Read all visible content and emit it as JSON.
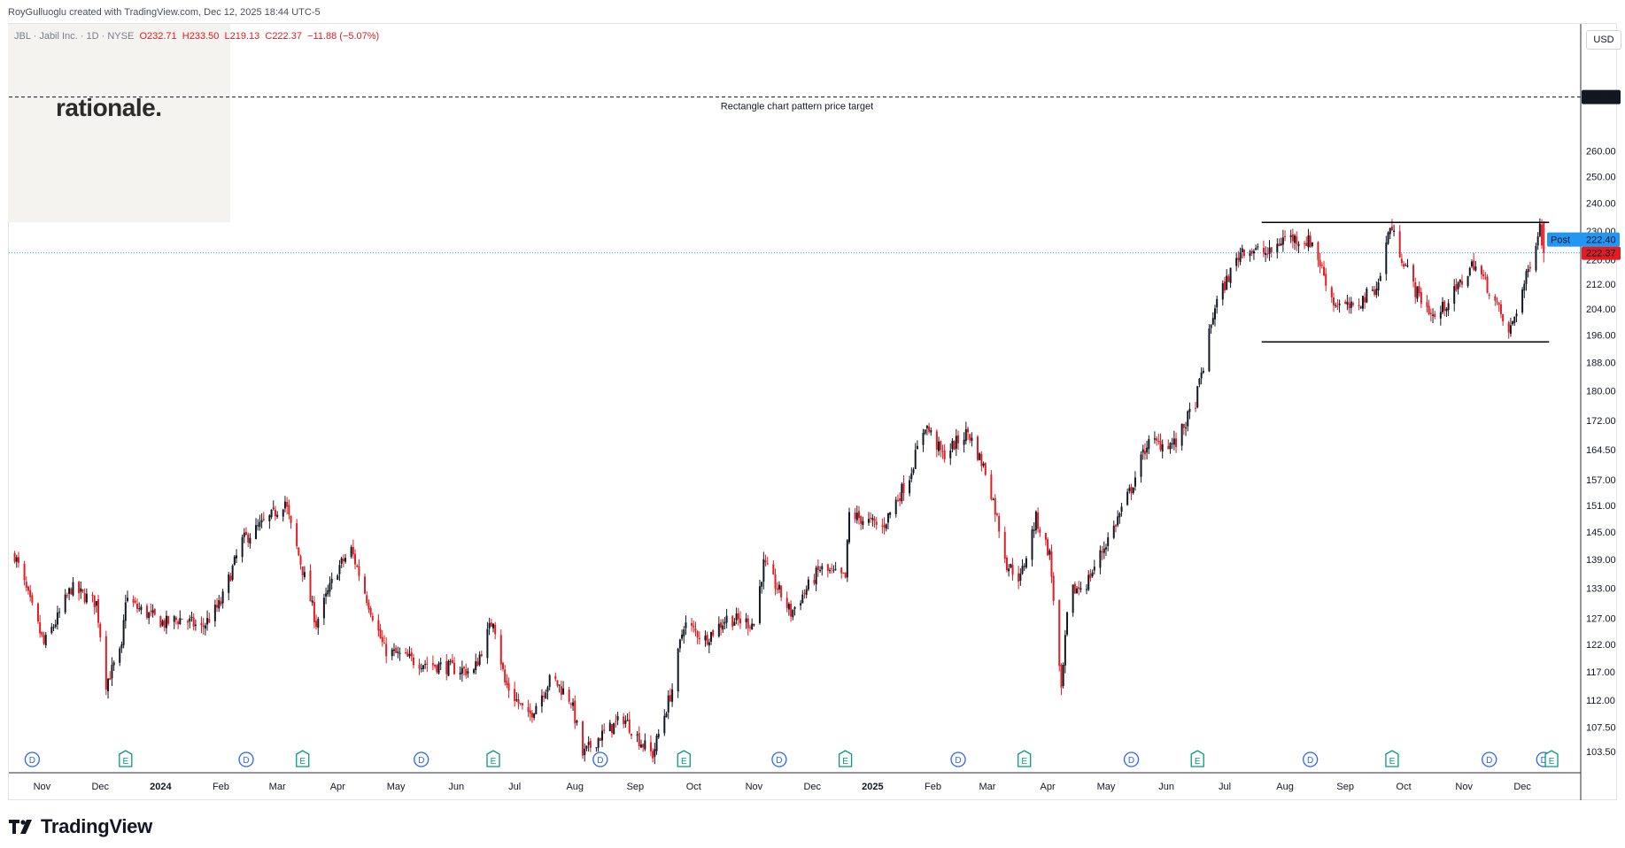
{
  "header": {
    "credit": "RoyGulluoglu created with TradingView.com, Dec 12, 2025 18:44 UTC-5"
  },
  "legend": {
    "symbol": "JBL · Jabil Inc. · 1D · NYSE",
    "open": "O232.71",
    "high": "H233.50",
    "low": "L219.13",
    "close": "C222.37",
    "change": "−11.88 (−5.07%)"
  },
  "logo": {
    "text": "rationale."
  },
  "currency_button": "USD",
  "footer": {
    "brand": "TradingView"
  },
  "colors": {
    "up": "#131722",
    "down": "#e01c24",
    "grid_line": "#000000",
    "post_badge": "#2196f3",
    "price_badge": "#e01c24",
    "dividend": "#2962ff",
    "earnings": "#089981"
  },
  "chart_data": {
    "type": "candlestick",
    "symbol": "JBL",
    "y_axis": {
      "ticks": [
        "282.40",
        "260.00",
        "250.00",
        "240.00",
        "230.00",
        "220.00",
        "212.00",
        "204.00",
        "196.00",
        "188.00",
        "180.00",
        "172.00",
        "164.50",
        "157.00",
        "151.00",
        "145.00",
        "139.00",
        "133.00",
        "127.00",
        "122.00",
        "117.00",
        "112.00",
        "107.50",
        "103.50"
      ],
      "scale": "log",
      "range": [
        102,
        290
      ]
    },
    "x_axis": {
      "ticks": [
        "Nov",
        "Dec",
        "2024",
        "Feb",
        "Mar",
        "Apr",
        "May",
        "Jun",
        "Jul",
        "Aug",
        "Sep",
        "Oct",
        "Nov",
        "Dec",
        "2025",
        "Feb",
        "Mar",
        "Apr",
        "May",
        "Jun",
        "Jul",
        "Aug",
        "Sep",
        "Oct",
        "Nov",
        "Dec"
      ],
      "bold_ticks": [
        "2024",
        "2025"
      ],
      "range": [
        "2023-10-15",
        "2025-12-31"
      ]
    },
    "price_path": [
      [
        "2023-10-18",
        140
      ],
      [
        "2023-10-26",
        130
      ],
      [
        "2023-11-02",
        122
      ],
      [
        "2023-11-09",
        127
      ],
      [
        "2023-11-16",
        133
      ],
      [
        "2023-11-29",
        130
      ],
      [
        "2023-12-04",
        115
      ],
      [
        "2023-12-12",
        121
      ],
      [
        "2023-12-14",
        131
      ],
      [
        "2023-12-20",
        129
      ],
      [
        "2024-01-03",
        126
      ],
      [
        "2024-01-12",
        127
      ],
      [
        "2024-01-22",
        125
      ],
      [
        "2024-02-01",
        130
      ],
      [
        "2024-02-12",
        143
      ],
      [
        "2024-02-26",
        148
      ],
      [
        "2024-03-05",
        152
      ],
      [
        "2024-03-08",
        146
      ],
      [
        "2024-03-21",
        126
      ],
      [
        "2024-04-01",
        137
      ],
      [
        "2024-04-08",
        141
      ],
      [
        "2024-04-16",
        131
      ],
      [
        "2024-04-25",
        121
      ],
      [
        "2024-05-10",
        119
      ],
      [
        "2024-05-24",
        118
      ],
      [
        "2024-06-10",
        117
      ],
      [
        "2024-06-20",
        127
      ],
      [
        "2024-06-26",
        115
      ],
      [
        "2024-07-08",
        109
      ],
      [
        "2024-07-20",
        116
      ],
      [
        "2024-07-30",
        112
      ],
      [
        "2024-08-05",
        103
      ],
      [
        "2024-08-14",
        106
      ],
      [
        "2024-08-26",
        109
      ],
      [
        "2024-09-04",
        105
      ],
      [
        "2024-09-10",
        103
      ],
      [
        "2024-09-20",
        114
      ],
      [
        "2024-09-26",
        126
      ],
      [
        "2024-10-07",
        123
      ],
      [
        "2024-10-18",
        127
      ],
      [
        "2024-11-01",
        126
      ],
      [
        "2024-11-06",
        138
      ],
      [
        "2024-11-20",
        128
      ],
      [
        "2024-12-05",
        137
      ],
      [
        "2024-12-18",
        135
      ],
      [
        "2024-12-20",
        149
      ],
      [
        "2025-01-06",
        146
      ],
      [
        "2025-01-20",
        158
      ],
      [
        "2025-01-28",
        171
      ],
      [
        "2025-02-06",
        163
      ],
      [
        "2025-02-19",
        169
      ],
      [
        "2025-03-01",
        158
      ],
      [
        "2025-03-11",
        138
      ],
      [
        "2025-03-18",
        135
      ],
      [
        "2025-03-26",
        148
      ],
      [
        "2025-04-02",
        140
      ],
      [
        "2025-04-08",
        113
      ],
      [
        "2025-04-12",
        132
      ],
      [
        "2025-04-21",
        134
      ],
      [
        "2025-05-05",
        146
      ],
      [
        "2025-05-14",
        155
      ],
      [
        "2025-05-22",
        166
      ],
      [
        "2025-06-06",
        166
      ],
      [
        "2025-06-16",
        177
      ],
      [
        "2025-06-20",
        187
      ],
      [
        "2025-06-26",
        205
      ],
      [
        "2025-07-10",
        224
      ],
      [
        "2025-07-24",
        222
      ],
      [
        "2025-08-01",
        228
      ],
      [
        "2025-08-15",
        226
      ],
      [
        "2025-08-26",
        206
      ],
      [
        "2025-09-05",
        204
      ],
      [
        "2025-09-18",
        212
      ],
      [
        "2025-09-24",
        232
      ],
      [
        "2025-09-27",
        226
      ],
      [
        "2025-10-07",
        210
      ],
      [
        "2025-10-17",
        201
      ],
      [
        "2025-10-28",
        210
      ],
      [
        "2025-11-06",
        219
      ],
      [
        "2025-11-16",
        208
      ],
      [
        "2025-11-24",
        196
      ],
      [
        "2025-12-03",
        214
      ],
      [
        "2025-12-10",
        232
      ],
      [
        "2025-12-12",
        222.4
      ]
    ],
    "last_ohlc": {
      "open": 232.71,
      "high": 233.5,
      "low": 219.13,
      "close": 222.37
    },
    "annotations": {
      "target_label": "Rectangle chart pattern price target",
      "target_price": 282.4,
      "rectangle_top": 233,
      "rectangle_bottom": 194,
      "rectangle_start": "2025-07-20",
      "rectangle_end": "2025-12-12",
      "current_price": 222.37,
      "post_label": "Post",
      "post_price": "222.40",
      "price_label": "222.37"
    },
    "events": [
      {
        "type": "D",
        "date": "2023-10-27"
      },
      {
        "type": "E",
        "date": "2023-12-14"
      },
      {
        "type": "D",
        "date": "2024-02-14"
      },
      {
        "type": "E",
        "date": "2024-03-14"
      },
      {
        "type": "D",
        "date": "2024-05-14"
      },
      {
        "type": "E",
        "date": "2024-06-20"
      },
      {
        "type": "D",
        "date": "2024-08-14"
      },
      {
        "type": "E",
        "date": "2024-09-26"
      },
      {
        "type": "D",
        "date": "2024-11-14"
      },
      {
        "type": "E",
        "date": "2024-12-18"
      },
      {
        "type": "D",
        "date": "2025-02-14"
      },
      {
        "type": "E",
        "date": "2025-03-20"
      },
      {
        "type": "D",
        "date": "2025-05-14"
      },
      {
        "type": "E",
        "date": "2025-06-17"
      },
      {
        "type": "D",
        "date": "2025-08-14"
      },
      {
        "type": "E",
        "date": "2025-09-25"
      },
      {
        "type": "D",
        "date": "2025-11-14"
      },
      {
        "type": "D",
        "date": "2025-12-12"
      },
      {
        "type": "E",
        "date": "2025-12-16"
      }
    ]
  }
}
